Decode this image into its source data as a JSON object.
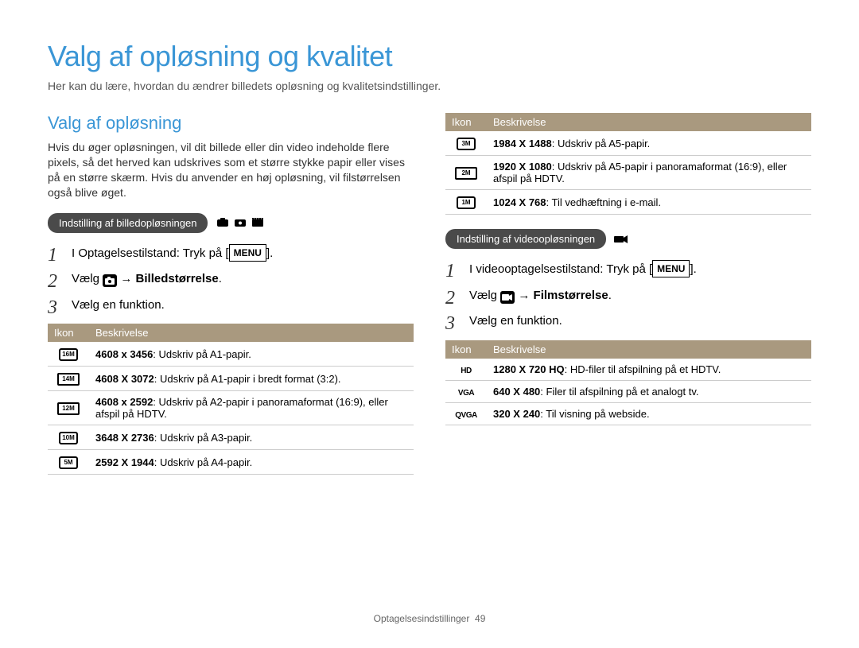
{
  "title": "Valg af opløsning og kvalitet",
  "subtitle": "Her kan du lære, hvordan du ændrer billedets opløsning og kvalitetsindstillinger.",
  "left": {
    "heading": "Valg af opløsning",
    "body": "Hvis du øger opløsningen, vil dit billede eller din video indeholde flere pixels, så det herved kan udskrives som et større stykke papir eller vises på en større skærm. Hvis du anvender en høj opløsning, vil filstørrelsen også blive øget.",
    "pill": "Indstilling af billedopløsningen",
    "steps": {
      "s1_a": "I Optagelsestilstand: Tryk på [",
      "s1_b": "].",
      "s2_a": "Vælg ",
      "s2_b": " → ",
      "s2_c": "Billedstørrelse",
      "s2_d": ".",
      "s3": "Vælg en funktion."
    },
    "table": {
      "h1": "Ikon",
      "h2": "Beskrivelse",
      "rows": [
        {
          "icon": "16M",
          "bold": "4608 x 3456",
          "rest": ": Udskriv på A1-papir."
        },
        {
          "icon": "14M",
          "wide": true,
          "bold": "4608 X 3072",
          "rest": ": Udskriv på A1-papir i bredt format (3:2)."
        },
        {
          "icon": "12M",
          "wide": true,
          "bold": "4608 x 2592",
          "rest": ": Udskriv på A2-papir i panoramaformat (16:9), eller afspil på HDTV."
        },
        {
          "icon": "10M",
          "bold": "3648 X 2736",
          "rest": ": Udskriv på A3-papir."
        },
        {
          "icon": "5M",
          "bold": "2592 X 1944",
          "rest": ": Udskriv på A4-papir."
        }
      ]
    }
  },
  "right": {
    "top_table": {
      "h1": "Ikon",
      "h2": "Beskrivelse",
      "rows": [
        {
          "icon": "3M",
          "bold": "1984 X 1488",
          "rest": ": Udskriv på A5-papir."
        },
        {
          "icon": "2M",
          "wide": true,
          "bold": "1920 X 1080",
          "rest": ": Udskriv på A5-papir i panoramaformat (16:9), eller afspil på HDTV."
        },
        {
          "icon": "1M",
          "bold": "1024 X 768",
          "rest": ": Til vedhæftning i e-mail."
        }
      ]
    },
    "pill": "Indstilling af videoopløsningen",
    "steps": {
      "s1_a": "I videooptagelsestilstand: Tryk på [",
      "s1_b": "].",
      "s2_a": "Vælg ",
      "s2_b": " → ",
      "s2_c": "Filmstørrelse",
      "s2_d": ".",
      "s3": "Vælg en funktion."
    },
    "video_table": {
      "h1": "Ikon",
      "h2": "Beskrivelse",
      "rows": [
        {
          "icon": "HD",
          "bold": "1280 X 720 HQ",
          "rest": ": HD-filer til afspilning på et HDTV."
        },
        {
          "icon": "VGA",
          "bold": "640 X 480",
          "rest": ": Filer til afspilning på et analogt tv."
        },
        {
          "icon": "QVGA",
          "bold": "320 X 240",
          "rest": ": Til visning på webside."
        }
      ]
    }
  },
  "menu_label": "MENU",
  "footer": {
    "text": "Optagelsesindstillinger",
    "page": "49"
  }
}
